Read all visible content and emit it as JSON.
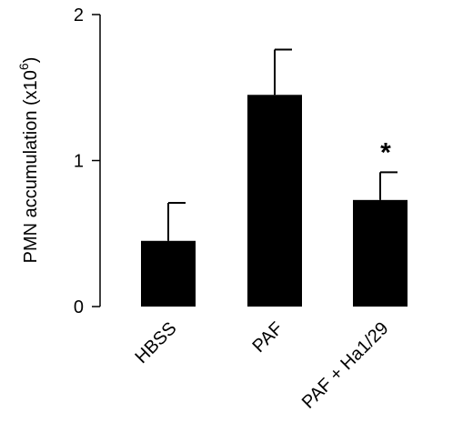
{
  "chart_data": {
    "type": "bar",
    "categories": [
      "HBSS",
      "PAF",
      "PAF + Ha1/29"
    ],
    "values": [
      0.45,
      1.45,
      0.73
    ],
    "errors": [
      0.26,
      0.31,
      0.19
    ],
    "annotations": [
      "",
      "",
      "*"
    ],
    "ylabel": "PMN accumulation (x10",
    "ylabel_superscript": "6",
    "ylabel_suffix": ")",
    "ylim": [
      0,
      2
    ],
    "yticks": [
      0,
      1,
      2
    ],
    "ytick_labels": [
      "0",
      "1",
      "2"
    ],
    "grid": false,
    "bar_color": "#000000"
  }
}
